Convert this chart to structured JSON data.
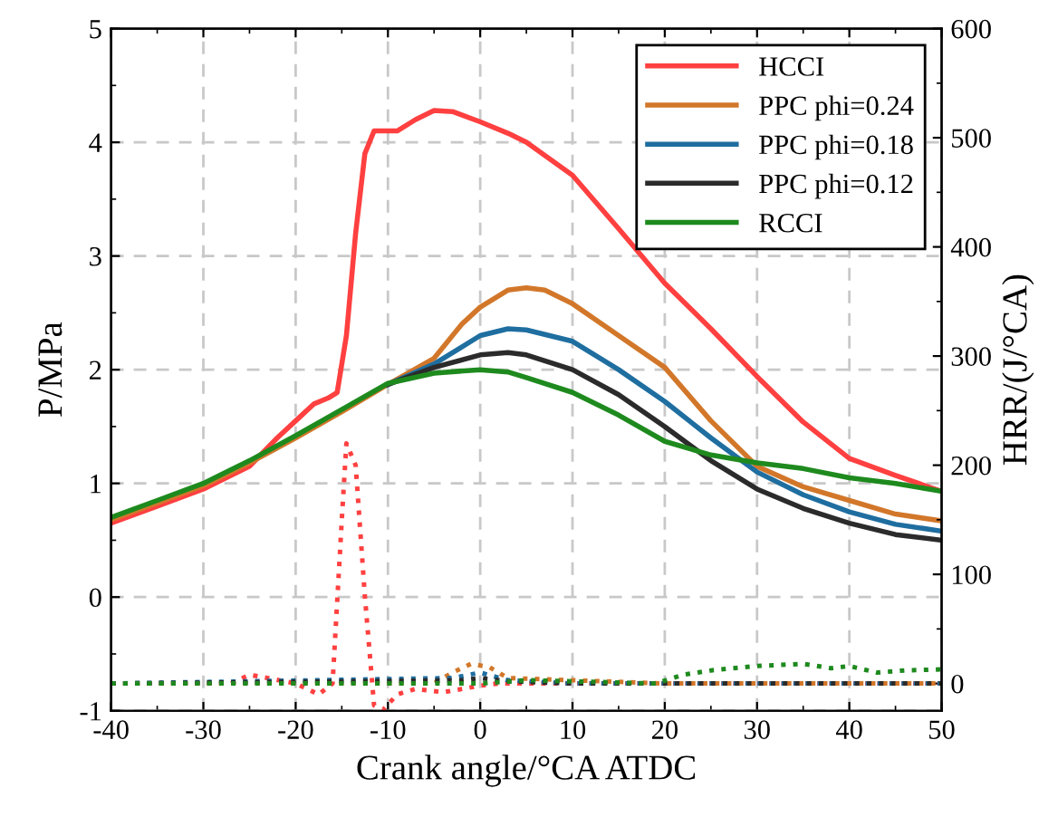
{
  "chart_data": {
    "type": "line",
    "xlabel": "Crank angle/°CA ATDC",
    "ylabel": "P/MPa",
    "y2label": "HRR/(J/°CA)",
    "xlim": [
      -40,
      50
    ],
    "xticks": [
      -40,
      -30,
      -20,
      -10,
      0,
      10,
      20,
      30,
      40,
      50
    ],
    "ylim": [
      -1,
      5
    ],
    "yticks": [
      -1,
      0,
      1,
      2,
      3,
      4,
      5
    ],
    "y2lim": [
      -25,
      600
    ],
    "y2ticks": [
      0,
      100,
      200,
      300,
      400,
      500,
      600
    ],
    "grid": true,
    "legend": "top right",
    "marker": "none",
    "series": [
      {
        "name": "HCCI",
        "color": "#ff4040",
        "line_style": "solid",
        "x": [
          -40,
          -35,
          -30,
          -25,
          -22,
          -20,
          -18,
          -16.5,
          -15.5,
          -14.5,
          -13.5,
          -12.5,
          -11.5,
          -10,
          -9,
          -7,
          -5,
          -3,
          0,
          3,
          5,
          10,
          15,
          20,
          25,
          30,
          35,
          40,
          45,
          50
        ],
        "values": [
          0.65,
          0.8,
          0.95,
          1.15,
          1.4,
          1.55,
          1.7,
          1.75,
          1.8,
          2.3,
          3.2,
          3.9,
          4.1,
          4.1,
          4.1,
          4.2,
          4.28,
          4.27,
          4.18,
          4.08,
          4.0,
          3.71,
          3.24,
          2.76,
          2.36,
          1.94,
          1.54,
          1.22,
          1.07,
          0.93
        ]
      },
      {
        "name": "PPC phi=0.24",
        "color": "#d2772a",
        "line_style": "solid",
        "x": [
          -40,
          -35,
          -30,
          -25,
          -20,
          -15,
          -10,
          -5,
          -2,
          0,
          3,
          5,
          7,
          10,
          15,
          20,
          25,
          30,
          35,
          40,
          45,
          50
        ],
        "values": [
          0.68,
          0.83,
          0.98,
          1.18,
          1.4,
          1.63,
          1.87,
          2.1,
          2.4,
          2.55,
          2.7,
          2.72,
          2.7,
          2.58,
          2.3,
          2.02,
          1.55,
          1.15,
          0.97,
          0.85,
          0.73,
          0.67
        ]
      },
      {
        "name": "PPC phi=0.18",
        "color": "#1f6ea0",
        "line_style": "solid",
        "x": [
          -10,
          -5,
          0,
          3,
          5,
          10,
          15,
          20,
          25,
          30,
          35,
          40,
          45,
          50
        ],
        "values": [
          1.87,
          2.05,
          2.3,
          2.36,
          2.35,
          2.25,
          2.0,
          1.72,
          1.4,
          1.1,
          0.9,
          0.75,
          0.64,
          0.58
        ]
      },
      {
        "name": "PPC phi=0.12",
        "color": "#2b2b2b",
        "line_style": "solid",
        "x": [
          -10,
          -5,
          0,
          3,
          5,
          10,
          15,
          20,
          25,
          30,
          35,
          40,
          45,
          50
        ],
        "values": [
          1.87,
          2.02,
          2.13,
          2.15,
          2.13,
          2.0,
          1.78,
          1.5,
          1.2,
          0.95,
          0.78,
          0.65,
          0.55,
          0.5
        ]
      },
      {
        "name": "RCCI",
        "color": "#1e8a1e",
        "line_style": "solid",
        "x": [
          -40,
          -35,
          -30,
          -25,
          -20,
          -15,
          -10,
          -5,
          0,
          3,
          5,
          10,
          15,
          20,
          25,
          30,
          35,
          40,
          45,
          50
        ],
        "values": [
          0.7,
          0.85,
          1.0,
          1.2,
          1.42,
          1.65,
          1.88,
          1.97,
          2.0,
          1.98,
          1.93,
          1.8,
          1.6,
          1.37,
          1.25,
          1.18,
          1.13,
          1.05,
          1.0,
          0.93
        ]
      },
      {
        "color": "#ff4040",
        "axis": "y2",
        "line_style": "dotted",
        "x": [
          -40,
          -27,
          -25,
          -23,
          -20,
          -17.5,
          -16,
          -15,
          -14.5,
          -13.5,
          -12.5,
          -11.5,
          -10.5,
          -9,
          -7,
          -4,
          -2,
          0,
          2,
          10,
          20,
          30,
          40,
          50
        ],
        "values": [
          0,
          0,
          8,
          5,
          0,
          -10,
          0,
          150,
          220,
          200,
          80,
          -20,
          -24,
          -10,
          -5,
          -8,
          -5,
          -2,
          0,
          0,
          0,
          0,
          0,
          0
        ]
      },
      {
        "color": "#d2772a",
        "axis": "y2",
        "line_style": "dotted",
        "x": [
          -40,
          -5,
          -3,
          -1,
          1,
          3,
          10,
          20,
          50
        ],
        "values": [
          0,
          0,
          10,
          18,
          15,
          5,
          3,
          0,
          0
        ]
      },
      {
        "color": "#1f6ea0",
        "axis": "y2",
        "line_style": "dotted",
        "x": [
          -40,
          -3,
          0,
          3,
          10,
          50
        ],
        "values": [
          0,
          5,
          10,
          3,
          0,
          0
        ]
      },
      {
        "color": "#2b2b2b",
        "axis": "y2",
        "line_style": "dotted",
        "x": [
          -40,
          -2,
          0,
          3,
          10,
          50
        ],
        "values": [
          0,
          3,
          5,
          2,
          0,
          0
        ]
      },
      {
        "color": "#1e8a1e",
        "axis": "y2",
        "line_style": "dotted",
        "x": [
          -40,
          0,
          5,
          10,
          19,
          22,
          25,
          30,
          35,
          38,
          40,
          43,
          46,
          50
        ],
        "values": [
          0,
          0,
          3,
          2,
          0,
          8,
          12,
          16,
          18,
          14,
          16,
          10,
          12,
          13
        ]
      }
    ]
  }
}
